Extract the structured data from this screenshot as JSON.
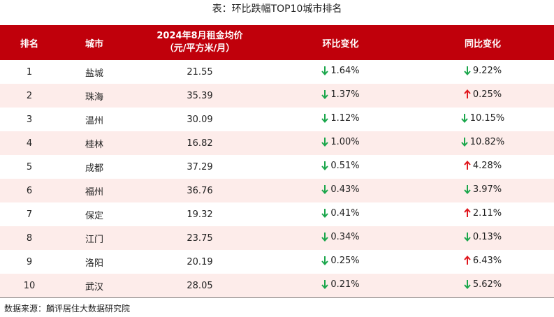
{
  "title": "表：环比跌幅TOP10城市排名",
  "header": {
    "rank": "排名",
    "city": "城市",
    "rent_line1": "2024年8月租金均价",
    "rent_line2": "（元/平方米/月）",
    "mom": "环比变化",
    "yoy": "同比变化"
  },
  "colors": {
    "header_bg": "#c0000b",
    "row_alt_bg": "#fdecea",
    "down_arrow": "#1aa64b",
    "up_arrow": "#e0161c"
  },
  "rows": [
    {
      "rank": "1",
      "city": "盐城",
      "rent": "21.55",
      "mom": "1.64%",
      "mom_dir": "down",
      "yoy": "9.22%",
      "yoy_dir": "down"
    },
    {
      "rank": "2",
      "city": "珠海",
      "rent": "35.39",
      "mom": "1.37%",
      "mom_dir": "down",
      "yoy": "0.25%",
      "yoy_dir": "up"
    },
    {
      "rank": "3",
      "city": "温州",
      "rent": "30.09",
      "mom": "1.12%",
      "mom_dir": "down",
      "yoy": "10.15%",
      "yoy_dir": "down"
    },
    {
      "rank": "4",
      "city": "桂林",
      "rent": "16.82",
      "mom": "1.00%",
      "mom_dir": "down",
      "yoy": "10.82%",
      "yoy_dir": "down"
    },
    {
      "rank": "5",
      "city": "成都",
      "rent": "37.29",
      "mom": "0.51%",
      "mom_dir": "down",
      "yoy": "4.28%",
      "yoy_dir": "up"
    },
    {
      "rank": "6",
      "city": "福州",
      "rent": "36.76",
      "mom": "0.43%",
      "mom_dir": "down",
      "yoy": "3.97%",
      "yoy_dir": "down"
    },
    {
      "rank": "7",
      "city": "保定",
      "rent": "19.32",
      "mom": "0.41%",
      "mom_dir": "down",
      "yoy": "2.11%",
      "yoy_dir": "up"
    },
    {
      "rank": "8",
      "city": "江门",
      "rent": "23.75",
      "mom": "0.34%",
      "mom_dir": "down",
      "yoy": "0.13%",
      "yoy_dir": "down"
    },
    {
      "rank": "9",
      "city": "洛阳",
      "rent": "20.19",
      "mom": "0.25%",
      "mom_dir": "down",
      "yoy": "6.43%",
      "yoy_dir": "up"
    },
    {
      "rank": "10",
      "city": "武汉",
      "rent": "28.05",
      "mom": "0.21%",
      "mom_dir": "down",
      "yoy": "5.62%",
      "yoy_dir": "down"
    }
  ],
  "source": "数据来源：麟评居住大数据研究院"
}
